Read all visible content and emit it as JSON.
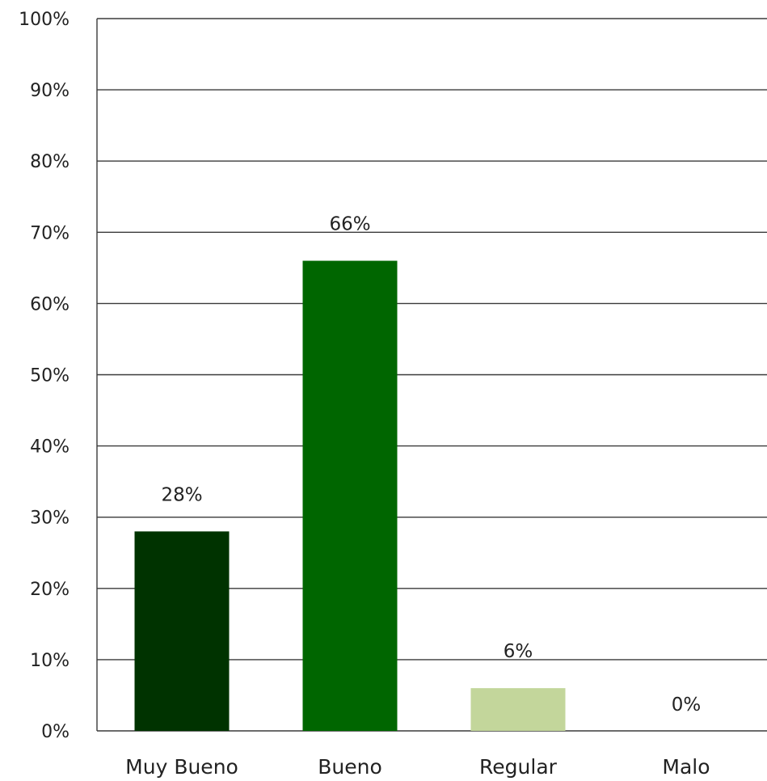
{
  "chart_data": {
    "type": "bar",
    "title": "",
    "xlabel": "",
    "ylabel": "",
    "categories": [
      "Muy Bueno",
      "Bueno",
      "Regular",
      "Malo"
    ],
    "values": [
      28,
      66,
      6,
      0
    ],
    "data_labels": [
      "28%",
      "66%",
      "6%",
      "0%"
    ],
    "ylim": [
      0,
      100
    ],
    "y_ticks": [
      0,
      10,
      20,
      30,
      40,
      50,
      60,
      70,
      80,
      90,
      100
    ],
    "y_tick_labels": [
      "0%",
      "10%",
      "20%",
      "30%",
      "40%",
      "50%",
      "60%",
      "70%",
      "80%",
      "90%",
      "100%"
    ],
    "grid": true,
    "legend": "none",
    "bar_colors": [
      "#003300",
      "#006600",
      "#c3d69b",
      "#c3d69b"
    ],
    "gridline_color": "#3a3a3a"
  }
}
